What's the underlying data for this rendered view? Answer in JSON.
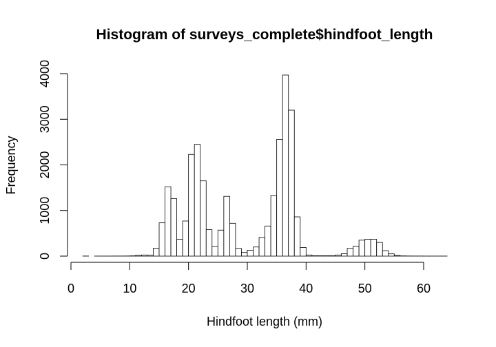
{
  "chart_data": {
    "type": "bar",
    "title": "Histogram of surveys_complete$hindfoot_length",
    "xlabel": "Hindfoot length (mm)",
    "ylabel": "Frequency",
    "xlim": [
      0,
      65
    ],
    "ylim": [
      0,
      4000
    ],
    "x_ticks": [
      "0",
      "10",
      "20",
      "30",
      "40",
      "50",
      "60"
    ],
    "y_ticks": [
      "0",
      "1000",
      "2000",
      "3000",
      "4000"
    ],
    "bin_width": 1,
    "bin_start": 2,
    "values": [
      2,
      0,
      1,
      1,
      1,
      2,
      2,
      3,
      6,
      18,
      25,
      24,
      175,
      730,
      1520,
      1260,
      370,
      770,
      2230,
      2450,
      1650,
      580,
      210,
      570,
      1310,
      720,
      170,
      80,
      130,
      200,
      410,
      660,
      1330,
      2560,
      3970,
      3200,
      860,
      190,
      25,
      8,
      8,
      8,
      8,
      25,
      55,
      170,
      220,
      350,
      370,
      370,
      300,
      120,
      50,
      15,
      5,
      3,
      2,
      2,
      1,
      1,
      1,
      1
    ],
    "grid": false,
    "legend": "none",
    "bar_fill": "#ffffff",
    "bar_stroke": "#000000"
  }
}
